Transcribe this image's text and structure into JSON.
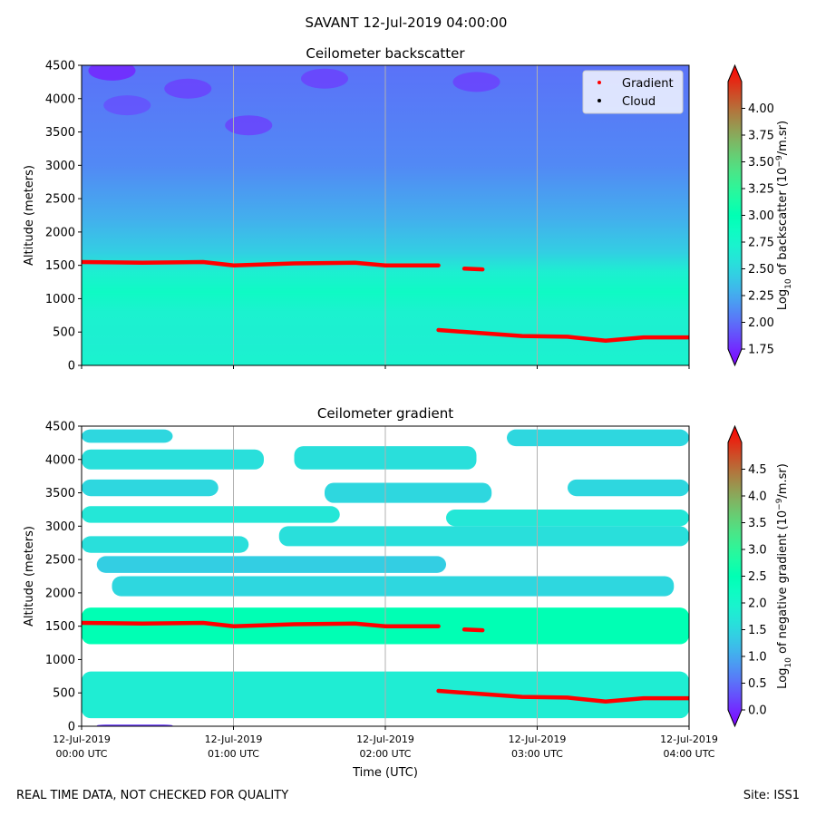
{
  "figure_title": "SAVANT 12-Jul-2019 04:00:00",
  "footer": {
    "left": "REAL TIME DATA, NOT CHECKED FOR QUALITY",
    "right": "Site: ISS1"
  },
  "colors": {
    "gradient_marker": "#ff0000",
    "cloud_marker": "#000000",
    "colormap": "rainbow"
  },
  "chart_data": [
    {
      "type": "heatmap",
      "title": "Ceilometer backscatter",
      "ylabel": "Altitude (meters)",
      "xlabel": "",
      "ylim": [
        0,
        4500
      ],
      "yticks": [
        0,
        500,
        1000,
        1500,
        2000,
        2500,
        3000,
        3500,
        4000,
        4500
      ],
      "xlim_hours_utc": [
        0,
        4
      ],
      "x_gridlines_hours": [
        1,
        2,
        3
      ],
      "colorbar": {
        "label_prefix": "Log",
        "label_sub": "10",
        "label_mid": " of backscatter (10",
        "label_sup": "−9",
        "label_end": "/m.sr)",
        "range": [
          1.75,
          4.25
        ],
        "ticks": [
          "1.75",
          "2.00",
          "2.25",
          "2.50",
          "2.75",
          "3.00",
          "3.25",
          "3.50",
          "3.75",
          "4.00"
        ]
      },
      "legend": {
        "position": "top-right",
        "entries": [
          {
            "label": "Gradient",
            "color": "#ff0000"
          },
          {
            "label": "Cloud",
            "color": "#000000"
          }
        ]
      },
      "field_profile": [
        {
          "alt": 0,
          "value": 2.75
        },
        {
          "alt": 350,
          "value": 2.72
        },
        {
          "alt": 800,
          "value": 2.74
        },
        {
          "alt": 1100,
          "value": 2.85
        },
        {
          "alt": 1400,
          "value": 2.72
        },
        {
          "alt": 1700,
          "value": 2.5
        },
        {
          "alt": 2200,
          "value": 2.35
        },
        {
          "alt": 3000,
          "value": 2.2
        },
        {
          "alt": 4500,
          "value": 2.12
        }
      ],
      "low_patches": [
        {
          "t": 0.2,
          "alt": 4420,
          "value": 1.85
        },
        {
          "t": 0.7,
          "alt": 4150,
          "value": 1.95
        },
        {
          "t": 1.1,
          "alt": 3600,
          "value": 1.95
        },
        {
          "t": 1.6,
          "alt": 4300,
          "value": 1.95
        },
        {
          "t": 2.6,
          "alt": 4250,
          "value": 1.95
        },
        {
          "t": 0.3,
          "alt": 3900,
          "value": 2.0
        }
      ],
      "gradient_series": [
        {
          "name": "upper",
          "t": [
            0.0,
            0.4,
            0.8,
            1.0,
            1.4,
            1.8,
            2.0,
            2.35
          ],
          "alt": [
            1550,
            1540,
            1550,
            1500,
            1530,
            1540,
            1500,
            1500
          ]
        },
        {
          "name": "fragment",
          "t": [
            2.52,
            2.64
          ],
          "alt": [
            1450,
            1440
          ]
        },
        {
          "name": "lower",
          "t": [
            2.35,
            2.6,
            2.9,
            3.2,
            3.45,
            3.7,
            4.0
          ],
          "alt": [
            530,
            490,
            440,
            430,
            370,
            420,
            420
          ]
        }
      ]
    },
    {
      "type": "heatmap",
      "title": "Ceilometer gradient",
      "ylabel": "Altitude (meters)",
      "xlabel": "Time (UTC)",
      "ylim": [
        0,
        4500
      ],
      "yticks": [
        0,
        500,
        1000,
        1500,
        2000,
        2500,
        3000,
        3500,
        4000,
        4500
      ],
      "xlim_hours_utc": [
        0,
        4
      ],
      "xticks": [
        {
          "hour": 0,
          "line1": "12-Jul-2019",
          "line2": "00:00 UTC"
        },
        {
          "hour": 1,
          "line1": "12-Jul-2019",
          "line2": "01:00 UTC"
        },
        {
          "hour": 2,
          "line1": "12-Jul-2019",
          "line2": "02:00 UTC"
        },
        {
          "hour": 3,
          "line1": "12-Jul-2019",
          "line2": "03:00 UTC"
        },
        {
          "hour": 4,
          "line1": "12-Jul-2019",
          "line2": "04:00 UTC"
        }
      ],
      "colorbar": {
        "label_prefix": "Log",
        "label_sub": "10",
        "label_mid": " of negative gradient (10",
        "label_sup": "−9",
        "label_end": "/m.sr)",
        "range": [
          0.0,
          5.0
        ],
        "ticks": [
          "0.0",
          "0.5",
          "1.0",
          "1.5",
          "2.0",
          "2.5",
          "3.0",
          "3.5",
          "4.0",
          "4.5"
        ]
      },
      "bands": [
        {
          "alt_low": 1230,
          "alt_high": 1780,
          "value": 2.5,
          "t_start": 0,
          "t_end": 4
        },
        {
          "alt_low": 120,
          "alt_high": 820,
          "value": 1.9,
          "t_start": 0,
          "t_end": 4
        },
        {
          "alt_low": 1950,
          "alt_high": 2250,
          "value": 1.6,
          "t_start": 0.2,
          "t_end": 3.9
        },
        {
          "alt_low": 2300,
          "alt_high": 2550,
          "value": 1.5,
          "t_start": 0.1,
          "t_end": 2.4
        },
        {
          "alt_low": 2600,
          "alt_high": 2850,
          "value": 1.7,
          "t_start": 0.0,
          "t_end": 1.1
        },
        {
          "alt_low": 2700,
          "alt_high": 3000,
          "value": 1.7,
          "t_start": 1.3,
          "t_end": 4.0
        },
        {
          "alt_low": 3050,
          "alt_high": 3300,
          "value": 1.8,
          "t_start": 0.0,
          "t_end": 1.7
        },
        {
          "alt_low": 3000,
          "alt_high": 3250,
          "value": 1.8,
          "t_start": 2.4,
          "t_end": 4.0
        },
        {
          "alt_low": 3450,
          "alt_high": 3700,
          "value": 1.6,
          "t_start": 0.0,
          "t_end": 0.9
        },
        {
          "alt_low": 3350,
          "alt_high": 3650,
          "value": 1.6,
          "t_start": 1.6,
          "t_end": 2.7
        },
        {
          "alt_low": 3450,
          "alt_high": 3700,
          "value": 1.6,
          "t_start": 3.2,
          "t_end": 4.0
        },
        {
          "alt_low": 3850,
          "alt_high": 4150,
          "value": 1.7,
          "t_start": 0.0,
          "t_end": 1.2
        },
        {
          "alt_low": 3850,
          "alt_high": 4200,
          "value": 1.7,
          "t_start": 1.4,
          "t_end": 2.6
        },
        {
          "alt_low": 4250,
          "alt_high": 4450,
          "value": 1.6,
          "t_start": 0.0,
          "t_end": 0.6
        },
        {
          "alt_low": 4200,
          "alt_high": 4450,
          "value": 1.6,
          "t_start": 2.8,
          "t_end": 4.0
        },
        {
          "alt_low": 0,
          "alt_high": 25,
          "value": 0.4,
          "t_start": 0.1,
          "t_end": 0.6
        }
      ],
      "gradient_series": [
        {
          "name": "upper",
          "t": [
            0.0,
            0.4,
            0.8,
            1.0,
            1.4,
            1.8,
            2.0,
            2.35
          ],
          "alt": [
            1550,
            1540,
            1550,
            1500,
            1530,
            1540,
            1500,
            1500
          ]
        },
        {
          "name": "fragment",
          "t": [
            2.52,
            2.64
          ],
          "alt": [
            1450,
            1440
          ]
        },
        {
          "name": "lower",
          "t": [
            2.35,
            2.6,
            2.9,
            3.2,
            3.45,
            3.7,
            4.0
          ],
          "alt": [
            530,
            490,
            440,
            430,
            370,
            420,
            420
          ]
        }
      ]
    }
  ]
}
